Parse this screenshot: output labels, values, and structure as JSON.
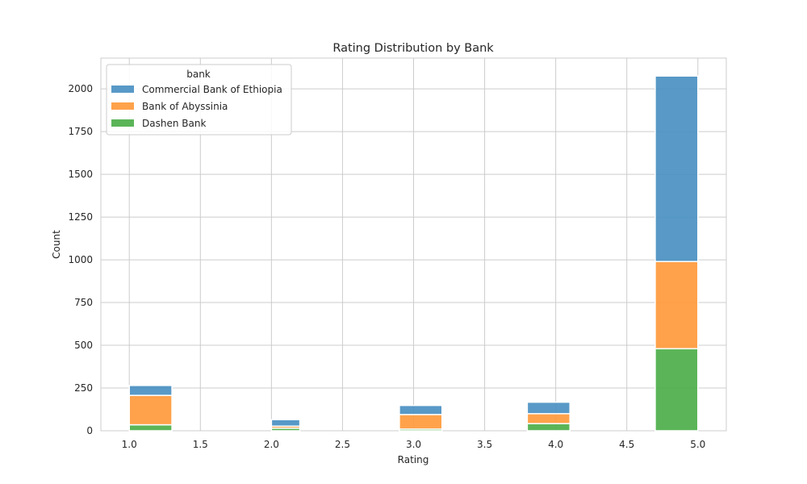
{
  "chart_data": {
    "type": "bar",
    "stacked": true,
    "title": "Rating Distribution by Bank",
    "xlabel": "Rating",
    "ylabel": "Count",
    "xlim": [
      0.8,
      5.2
    ],
    "ylim": [
      0,
      2180
    ],
    "xticks": [
      "1.0",
      "1.5",
      "2.0",
      "2.5",
      "3.0",
      "3.5",
      "4.0",
      "4.5",
      "5.0"
    ],
    "yticks": [
      "0",
      "250",
      "500",
      "750",
      "1000",
      "1250",
      "1500",
      "1750",
      "2000"
    ],
    "bin_edges": [
      [
        1.0,
        1.3
      ],
      [
        2.0,
        2.2
      ],
      [
        2.9,
        3.2
      ],
      [
        3.8,
        4.1
      ],
      [
        4.7,
        5.0
      ]
    ],
    "legend_title": "bank",
    "legend_position": "upper-left",
    "grid": true,
    "series": [
      {
        "name": "Dashen Bank",
        "color": "#4daf4a",
        "values": [
          35,
          15,
          10,
          42,
          480
        ]
      },
      {
        "name": "Bank of Abyssinia",
        "color": "#ff9a3c",
        "values": [
          172,
          12,
          85,
          58,
          510
        ]
      },
      {
        "name": "Commercial Bank of Ethiopia",
        "color": "#4a90c2",
        "values": [
          58,
          38,
          53,
          67,
          1085
        ]
      }
    ],
    "legend_order": [
      "Commercial Bank of Ethiopia",
      "Bank of Abyssinia",
      "Dashen Bank"
    ]
  }
}
